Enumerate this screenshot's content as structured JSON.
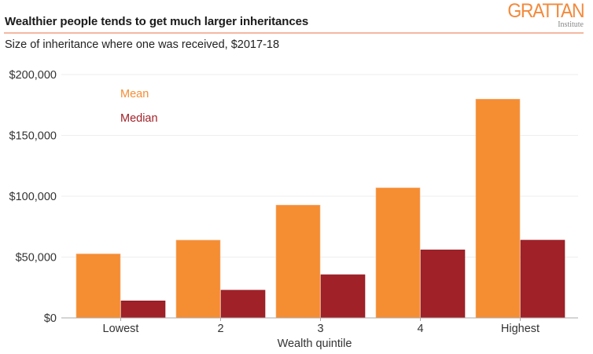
{
  "header": {
    "title": "Wealthier people tends to get much larger inheritances",
    "subtitle": "Size of inheritance where one was received, $2017-18",
    "logo_main": "GRATTAN",
    "logo_sub": "Institute"
  },
  "colors": {
    "mean": "#f58d33",
    "median": "#a12128",
    "rule": "#f4b8a1",
    "grid": "#eeeeee",
    "axis": "#aaaaaa"
  },
  "chart_data": {
    "type": "bar",
    "title": "Wealthier people tends to get much larger inheritances",
    "subtitle": "Size of inheritance where one was received, $2017-18",
    "xlabel": "Wealth quintile",
    "ylabel": "",
    "categories": [
      "Lowest",
      "2",
      "3",
      "4",
      "Highest"
    ],
    "series": [
      {
        "name": "Mean",
        "values": [
          52600,
          63900,
          92700,
          106900,
          179800
        ]
      },
      {
        "name": "Median",
        "values": [
          14000,
          22800,
          35500,
          55900,
          63900
        ]
      }
    ],
    "ylim": [
      0,
      200000
    ],
    "yticks": [
      0,
      50000,
      100000,
      150000,
      200000
    ],
    "ytick_labels": [
      "$0",
      "$50,000",
      "$100,000",
      "$150,000",
      "$200,000"
    ],
    "grid": true,
    "legend": "top-left, inside plot"
  }
}
